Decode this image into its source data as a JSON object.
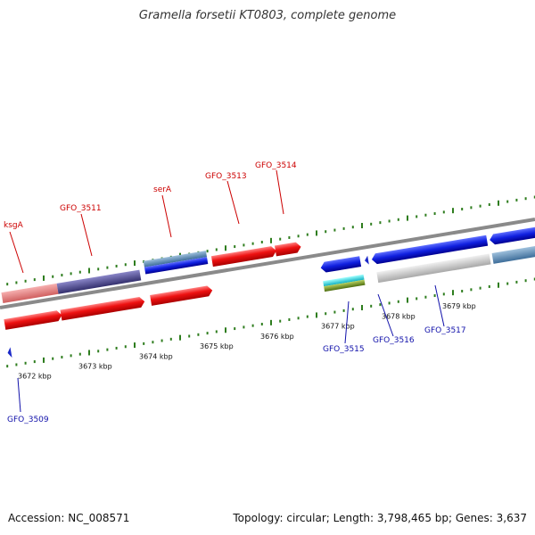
{
  "title": "Gramella forsetii KT0803, complete genome",
  "footer": {
    "accession": "Accession: NC_008571",
    "summary": "Topology: circular; Length: 3,798,465 bp; Genes: 3,637"
  },
  "colors": {
    "backbone": "#8a8a8a",
    "tick": "#2e7d1e",
    "label_forward": "#cc0000",
    "label_reverse": "#1010aa"
  },
  "ticks": [
    {
      "kbp": 3672,
      "label": "3672 kbp"
    },
    {
      "kbp": 3673,
      "label": "3673 kbp"
    },
    {
      "kbp": 3674,
      "label": "3674 kbp"
    },
    {
      "kbp": 3675,
      "label": "3675 kbp"
    },
    {
      "kbp": 3676,
      "label": "3676 kbp"
    },
    {
      "kbp": 3677,
      "label": "3677 kbp"
    },
    {
      "kbp": 3678,
      "label": "3678 kbp"
    },
    {
      "kbp": 3679,
      "label": "3679 kbp"
    }
  ],
  "gene_labels_forward": [
    "ksgA",
    "GFO_3511",
    "serA",
    "GFO_3513",
    "GFO_3514"
  ],
  "gene_labels_reverse": [
    "GFO_3509",
    "GFO_3515",
    "GFO_3516",
    "GFO_3517"
  ]
}
